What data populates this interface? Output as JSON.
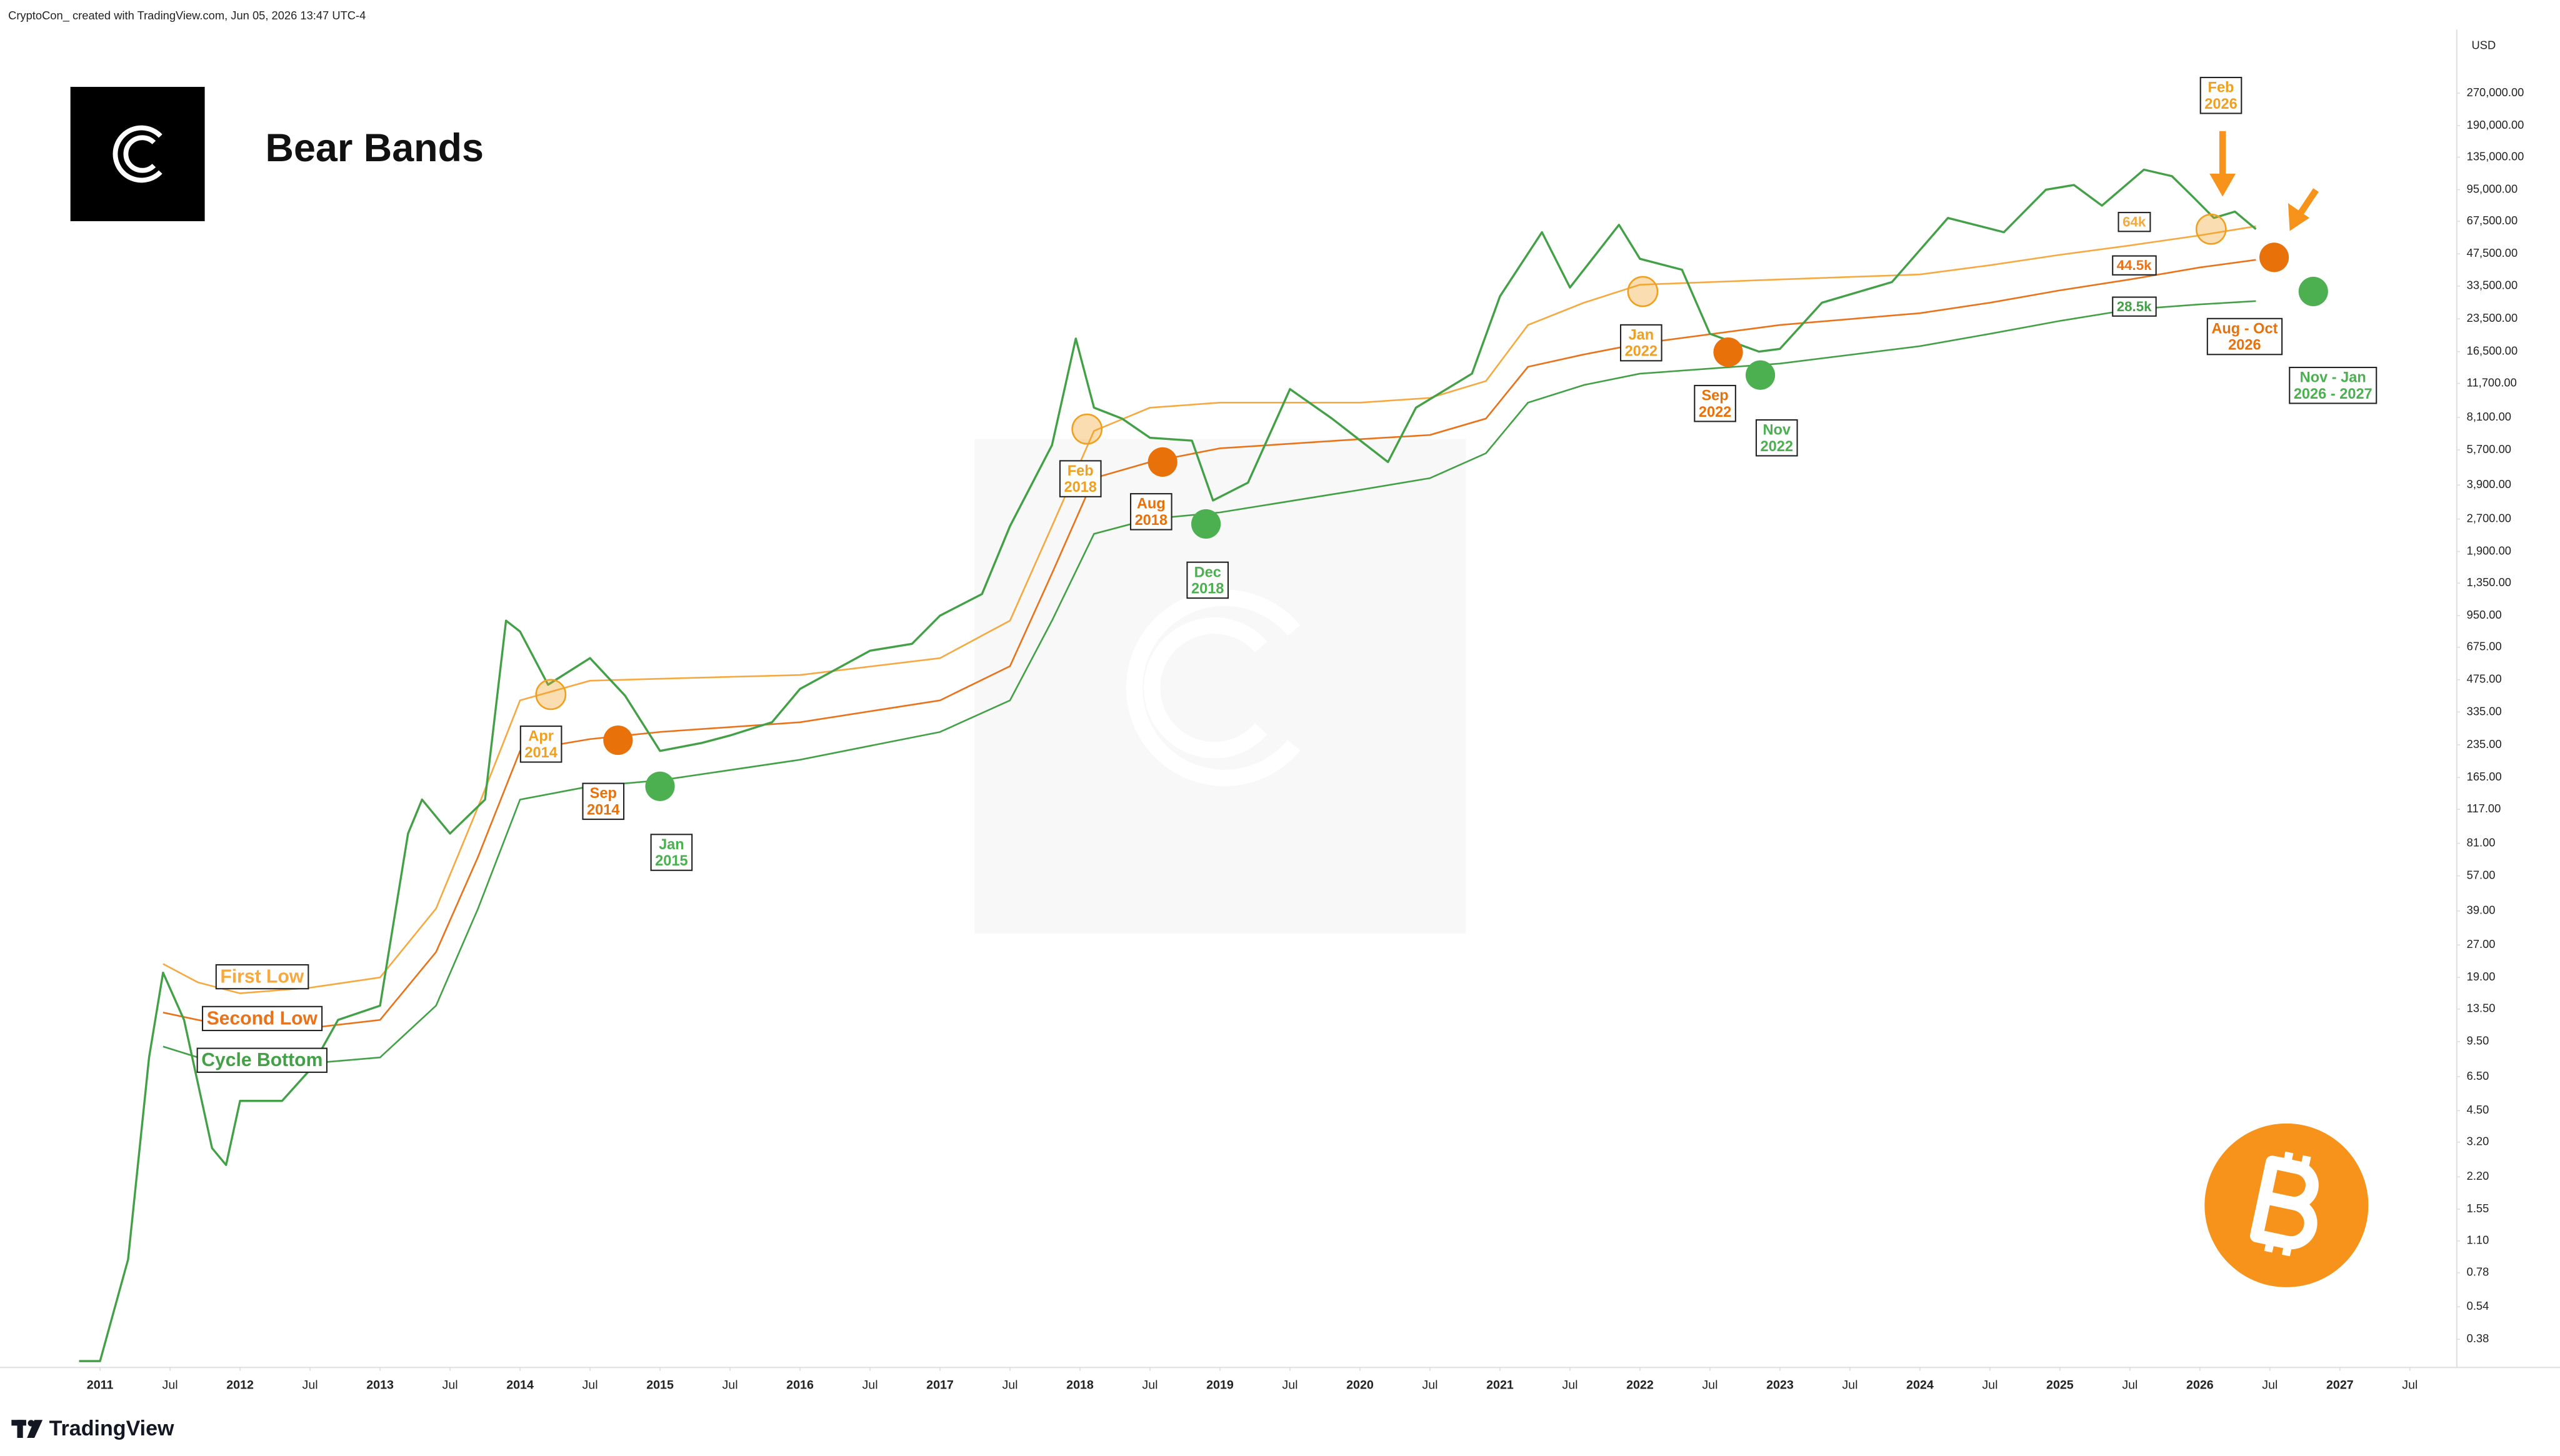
{
  "header": {
    "credit": "CryptoCon_  created with TradingView.com, Jun 05, 2026 13:47 UTC-4"
  },
  "footer": {
    "brand": "TradingView"
  },
  "chart_data": {
    "type": "line",
    "title": "Bear Bands",
    "ylabel": "USD",
    "log_y": true,
    "grid": false,
    "color": "#43a047",
    "xlim": [
      2010.8,
      2027.8
    ],
    "ylim": [
      0.28,
      500000
    ],
    "xticks": [
      2011,
      {
        "value": 2011.5,
        "label": "Jul"
      },
      2012,
      {
        "value": 2012.5,
        "label": "Jul"
      },
      2013,
      {
        "value": 2013.5,
        "label": "Jul"
      },
      2014,
      {
        "value": 2014.5,
        "label": "Jul"
      },
      2015,
      {
        "value": 2015.5,
        "label": "Jul"
      },
      2016,
      {
        "value": 2016.5,
        "label": "Jul"
      },
      2017,
      {
        "value": 2017.5,
        "label": "Jul"
      },
      2018,
      {
        "value": 2018.5,
        "label": "Jul"
      },
      2019,
      {
        "value": 2019.5,
        "label": "Jul"
      },
      2020,
      {
        "value": 2020.5,
        "label": "Jul"
      },
      2021,
      {
        "value": 2021.5,
        "label": "Jul"
      },
      2022,
      {
        "value": 2022.5,
        "label": "Jul"
      },
      2023,
      {
        "value": 2023.5,
        "label": "Jul"
      },
      2024,
      {
        "value": 2024.5,
        "label": "Jul"
      },
      2025,
      {
        "value": 2025.5,
        "label": "Jul"
      },
      2026,
      {
        "value": 2026.5,
        "label": "Jul"
      },
      2027,
      {
        "value": 2027.5,
        "label": "Jul"
      }
    ],
    "yticks": [
      0.38,
      0.54,
      0.78,
      {
        "value": 1.1,
        "label": "1.10"
      },
      1.55,
      {
        "value": 2.2,
        "label": "2.20"
      },
      {
        "value": 3.2,
        "label": "3.20"
      },
      {
        "value": 4.5,
        "label": "4.50"
      },
      {
        "value": 6.5,
        "label": "6.50"
      },
      {
        "value": 9.5,
        "label": "9.50"
      },
      {
        "value": 13.5,
        "label": "13.50"
      },
      {
        "value": 19,
        "label": "19.00"
      },
      {
        "value": 27,
        "label": "27.00"
      },
      {
        "value": 39,
        "label": "39.00"
      },
      {
        "value": 57,
        "label": "57.00"
      },
      {
        "value": 81,
        "label": "81.00"
      },
      {
        "value": 117,
        "label": "117.00"
      },
      {
        "value": 165,
        "label": "165.00"
      },
      {
        "value": 235,
        "label": "235.00"
      },
      {
        "value": 335,
        "label": "335.00"
      },
      {
        "value": 475,
        "label": "475.00"
      },
      {
        "value": 675,
        "label": "675.00"
      },
      {
        "value": 950,
        "label": "950.00"
      },
      {
        "value": 1350,
        "label": "1,350.00"
      },
      {
        "value": 1900,
        "label": "1,900.00"
      },
      {
        "value": 2700,
        "label": "2,700.00"
      },
      {
        "value": 3900,
        "label": "3,900.00"
      },
      {
        "value": 5700,
        "label": "5,700.00"
      },
      {
        "value": 8100,
        "label": "8,100.00"
      },
      {
        "value": 11700,
        "label": "11,700.00"
      },
      {
        "value": 16500,
        "label": "16,500.00"
      },
      {
        "value": 23500,
        "label": "23,500.00"
      },
      {
        "value": 33500,
        "label": "33,500.00"
      },
      {
        "value": 47500,
        "label": "47,500.00"
      },
      {
        "value": 67500,
        "label": "67,500.00"
      },
      {
        "value": 95000,
        "label": "95,000.00"
      },
      {
        "value": 135000,
        "label": "135,000.00"
      },
      {
        "value": 190000,
        "label": "190,000.00"
      },
      {
        "value": 270000,
        "label": "270,000.00"
      }
    ],
    "x": [
      2010.85,
      2011.0,
      2011.2,
      2011.35,
      2011.45,
      2011.6,
      2011.8,
      2011.9,
      2012.0,
      2012.3,
      2012.5,
      2012.7,
      2013.0,
      2013.2,
      2013.3,
      2013.5,
      2013.75,
      2013.9,
      2014.0,
      2014.2,
      2014.5,
      2014.75,
      2015.0,
      2015.3,
      2015.5,
      2015.8,
      2016.0,
      2016.5,
      2016.8,
      2017.0,
      2017.3,
      2017.5,
      2017.8,
      2017.97,
      2018.1,
      2018.3,
      2018.5,
      2018.8,
      2018.95,
      2019.2,
      2019.5,
      2019.8,
      2020.2,
      2020.4,
      2020.8,
      2021.0,
      2021.3,
      2021.5,
      2021.85,
      2022.0,
      2022.3,
      2022.5,
      2022.85,
      2023.0,
      2023.3,
      2023.8,
      2024.2,
      2024.6,
      2024.9,
      2025.1,
      2025.3,
      2025.6,
      2025.8,
      2025.95,
      2026.1,
      2026.25,
      2026.4
    ],
    "values": [
      0.3,
      0.3,
      0.9,
      8,
      20,
      12,
      3,
      2.5,
      5,
      5,
      7,
      12,
      14,
      90,
      130,
      90,
      130,
      900,
      800,
      450,
      600,
      400,
      220,
      240,
      260,
      300,
      430,
      650,
      700,
      950,
      1200,
      2500,
      6000,
      19000,
      9000,
      8000,
      6500,
      6300,
      3300,
      4000,
      11000,
      8000,
      5000,
      9000,
      13000,
      30000,
      60000,
      33000,
      65000,
      45000,
      40000,
      20000,
      16500,
      17000,
      28000,
      35000,
      70000,
      60000,
      95000,
      100000,
      80000,
      118000,
      110000,
      88000,
      70000,
      75000,
      62000
    ],
    "series": [
      {
        "name": "First Low",
        "color": "#f5a940",
        "x": [
          2011.45,
          2011.7,
          2012,
          2012.5,
          2013,
          2013.4,
          2013.7,
          2014,
          2014.5,
          2015,
          2016,
          2017,
          2017.5,
          2017.8,
          2018.1,
          2018.5,
          2019,
          2020,
          2020.5,
          2020.9,
          2021.2,
          2021.6,
          2022,
          2023,
          2024,
          2024.5,
          2025,
          2025.5,
          2026,
          2026.4
        ],
        "values": [
          22,
          18,
          16,
          17,
          19,
          40,
          120,
          380,
          470,
          480,
          500,
          600,
          900,
          2500,
          7000,
          9000,
          9500,
          9500,
          10000,
          12000,
          22000,
          28000,
          34000,
          36000,
          38000,
          42000,
          47000,
          52000,
          58000,
          64000
        ],
        "value_labels": [
          null,
          null,
          null,
          null,
          null,
          null,
          null,
          null,
          null,
          null,
          null,
          null,
          null,
          null,
          null,
          null,
          null,
          null,
          null,
          null,
          null,
          null,
          null,
          null,
          null,
          null,
          null,
          null,
          null,
          "64k"
        ]
      },
      {
        "name": "Second Low",
        "color": "#e8731a",
        "x": [
          2011.45,
          2011.7,
          2012,
          2012.5,
          2013,
          2013.4,
          2013.7,
          2014,
          2014.5,
          2015,
          2016,
          2017,
          2017.5,
          2017.8,
          2018.1,
          2018.5,
          2019,
          2020,
          2020.5,
          2020.9,
          2021.2,
          2021.6,
          2022,
          2023,
          2024,
          2024.5,
          2025,
          2025.5,
          2026,
          2026.4
        ],
        "values": [
          13,
          12,
          11,
          11,
          12,
          25,
          70,
          220,
          250,
          270,
          300,
          380,
          550,
          1500,
          4200,
          5000,
          5800,
          6400,
          6700,
          8000,
          14000,
          16000,
          18000,
          22000,
          25000,
          28000,
          32000,
          36000,
          41000,
          44500
        ],
        "value_labels": [
          null,
          null,
          null,
          null,
          null,
          null,
          null,
          null,
          null,
          null,
          null,
          null,
          null,
          null,
          null,
          null,
          null,
          null,
          null,
          null,
          null,
          null,
          null,
          null,
          null,
          null,
          null,
          null,
          null,
          "44.5k"
        ]
      },
      {
        "name": "Cycle Bottom",
        "color": "#43a047",
        "x": [
          2011.45,
          2011.7,
          2012,
          2012.5,
          2013,
          2013.4,
          2013.7,
          2014,
          2014.5,
          2015,
          2016,
          2017,
          2017.5,
          2017.8,
          2018.1,
          2018.5,
          2019,
          2020,
          2020.5,
          2020.9,
          2021.2,
          2021.6,
          2022,
          2023,
          2024,
          2024.5,
          2025,
          2025.5,
          2026,
          2026.4
        ],
        "values": [
          9,
          8,
          7,
          7.5,
          8,
          14,
          40,
          130,
          150,
          160,
          200,
          270,
          380,
          900,
          2300,
          2700,
          2900,
          3700,
          4200,
          5500,
          9500,
          11500,
          13000,
          14500,
          17500,
          20000,
          23000,
          26000,
          27500,
          28500
        ],
        "value_labels": [
          null,
          null,
          null,
          null,
          null,
          null,
          null,
          null,
          null,
          null,
          null,
          null,
          null,
          null,
          null,
          null,
          null,
          null,
          null,
          null,
          null,
          null,
          null,
          null,
          null,
          null,
          null,
          null,
          null,
          "28.5k"
        ]
      }
    ],
    "annotations": [
      {
        "label": [
          "Apr",
          "2014"
        ],
        "x": 2014.22,
        "y": 405,
        "style": "hollow",
        "color": "#f0a020"
      },
      {
        "label": [
          "Sep",
          "2014"
        ],
        "x": 2014.7,
        "y": 247,
        "style": "solid",
        "color": "#e8710a"
      },
      {
        "label": [
          "Jan",
          "2015"
        ],
        "x": 2015.0,
        "y": 150,
        "style": "solid",
        "color": "#4caf50"
      },
      {
        "label": [
          "Feb",
          "2018"
        ],
        "x": 2018.05,
        "y": 7140,
        "style": "hollow",
        "color": "#f0a020"
      },
      {
        "label": [
          "Aug",
          "2018"
        ],
        "x": 2018.59,
        "y": 5000,
        "style": "solid",
        "color": "#e8710a"
      },
      {
        "label": [
          "Dec",
          "2018"
        ],
        "x": 2018.9,
        "y": 2560,
        "style": "solid",
        "color": "#4caf50"
      },
      {
        "label": [
          "Jan",
          "2022"
        ],
        "x": 2022.02,
        "y": 31600,
        "style": "hollow",
        "color": "#f0a020"
      },
      {
        "label": [
          "Sep",
          "2022"
        ],
        "x": 2022.63,
        "y": 16400,
        "style": "solid",
        "color": "#e8710a"
      },
      {
        "label": [
          "Nov",
          "2022"
        ],
        "x": 2022.86,
        "y": 12800,
        "style": "solid",
        "color": "#4caf50"
      },
      {
        "label": [
          "Feb",
          "2026"
        ],
        "x": 2026.08,
        "y": 62000,
        "style": "hollow",
        "color": "#f0a020"
      },
      {
        "label": [
          "Aug - Oct",
          "2026"
        ],
        "x": 2026.53,
        "y": 45700,
        "style": "solid",
        "color": "#e8710a"
      },
      {
        "label": [
          "Nov - Jan",
          "2026 - 2027"
        ],
        "x": 2026.81,
        "y": 31600,
        "style": "solid",
        "color": "#4caf50"
      }
    ]
  }
}
